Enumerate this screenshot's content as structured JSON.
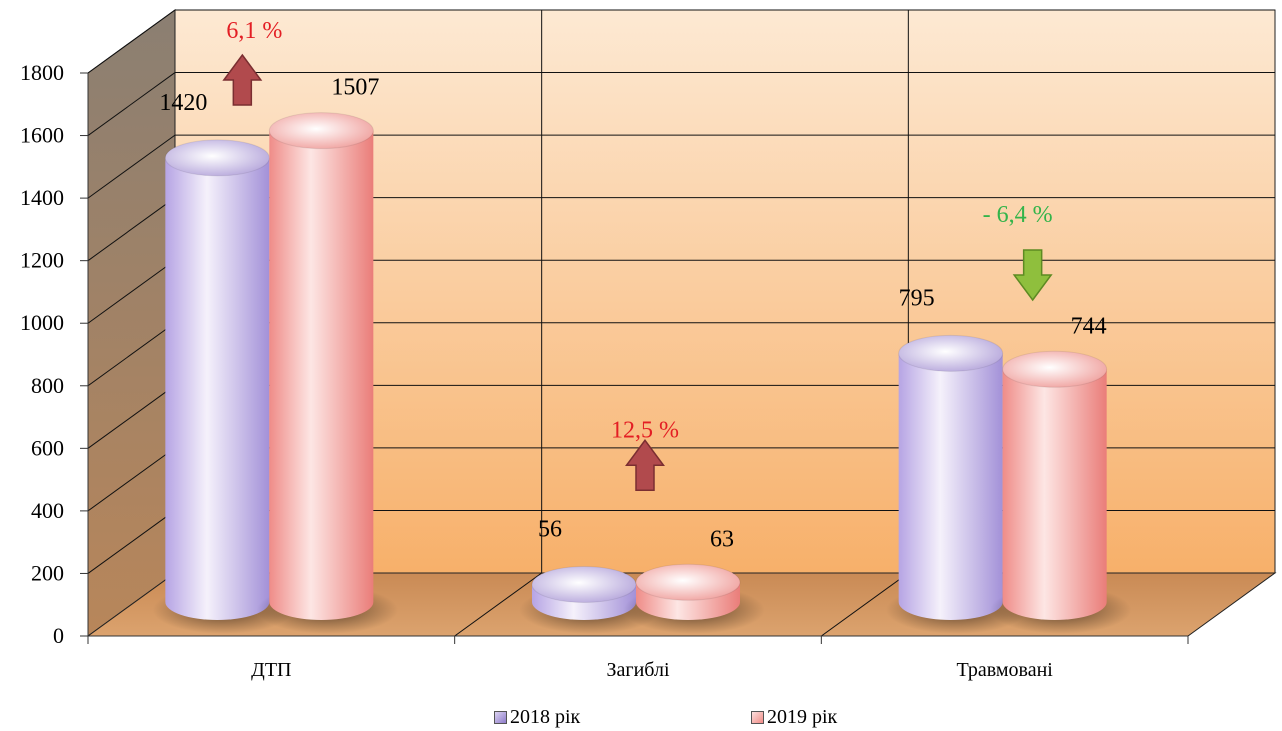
{
  "chart_data": {
    "type": "bar",
    "categories": [
      "ДТП",
      "Загиблі",
      "Травмовані"
    ],
    "series": [
      {
        "name": "2018 рік",
        "values": [
          1420,
          56,
          795
        ]
      },
      {
        "name": "2019 рік",
        "values": [
          1507,
          63,
          744
        ]
      }
    ],
    "ylim": [
      0,
      1800
    ],
    "yticks": [
      "0",
      "200",
      "400",
      "600",
      "800",
      "1000",
      "1200",
      "1400",
      "1600",
      "1800"
    ],
    "change_labels": [
      {
        "category": "ДТП",
        "text": "6,1 %",
        "direction": "up",
        "color": "#e31e24"
      },
      {
        "category": "Загиблі",
        "text": "12,5 %",
        "direction": "up",
        "color": "#e31e24"
      },
      {
        "category": "Травмовані",
        "text": "- 6,4 %",
        "direction": "down",
        "color": "#33b44a"
      }
    ],
    "grid": true,
    "legend_position": "bottom"
  },
  "colors": {
    "series_2018": "#c9bde9",
    "series_2019": "#f5a7a3",
    "up_arrow": "#b14a4d",
    "down_arrow": "#8fbf3d"
  }
}
